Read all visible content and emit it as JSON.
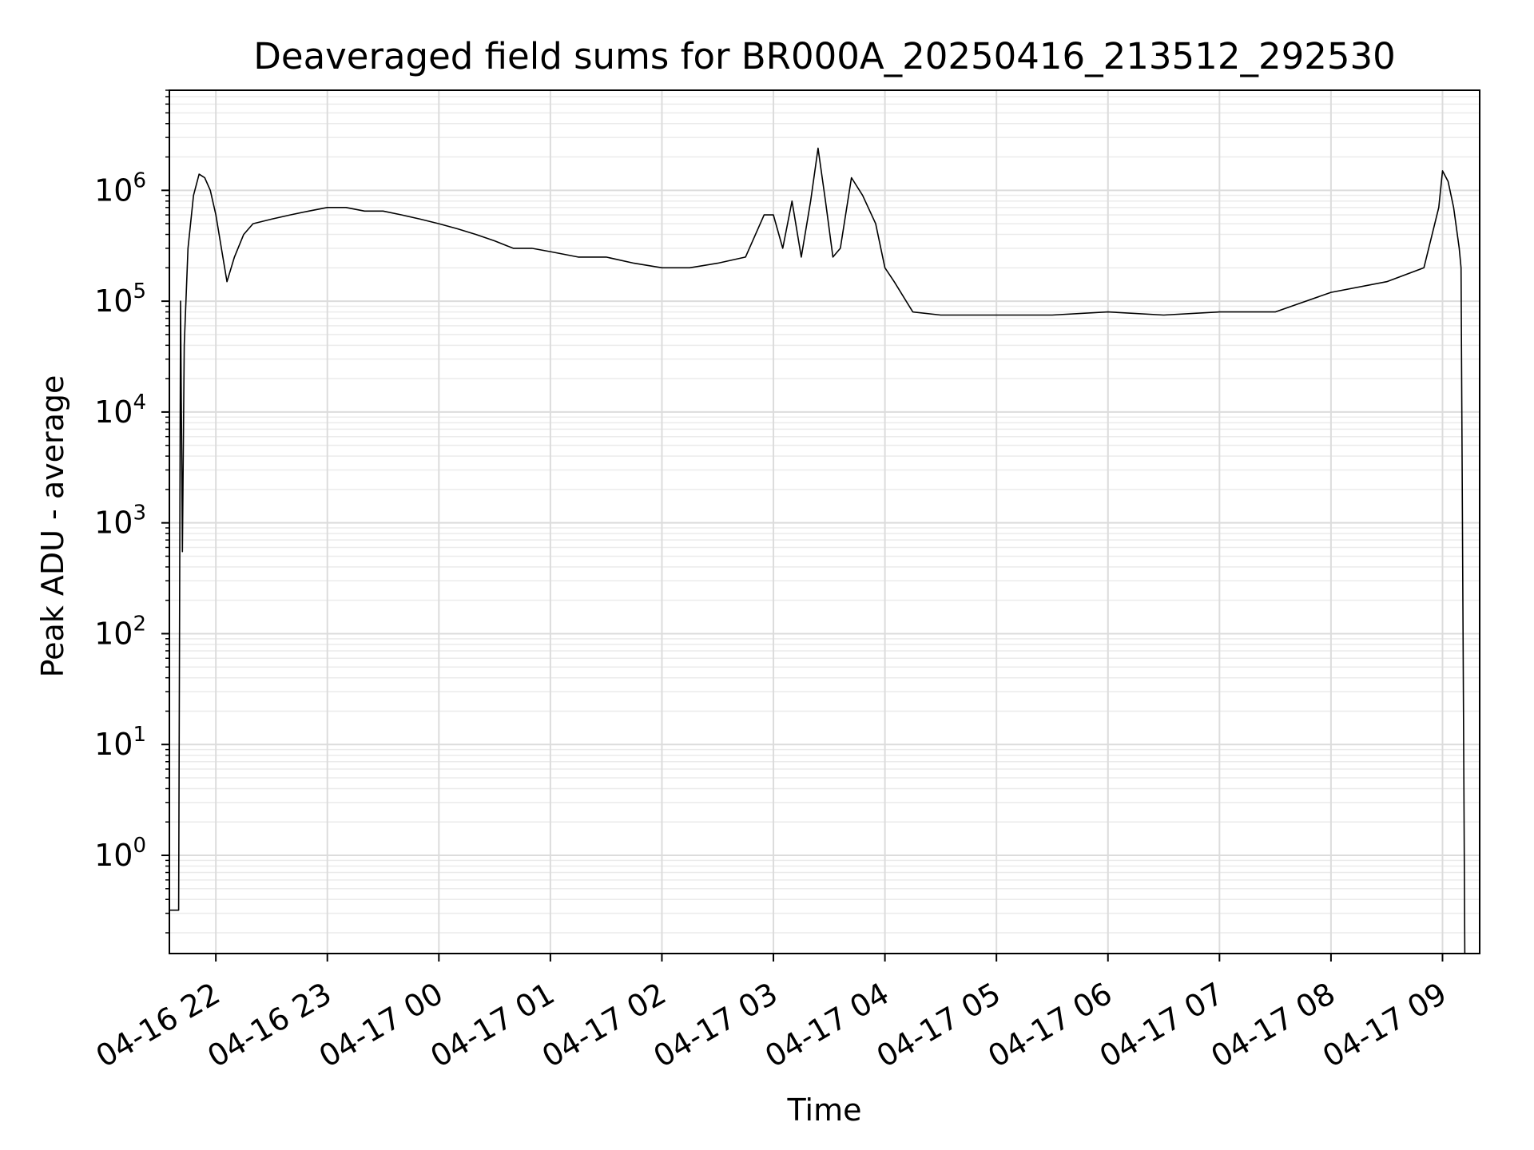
{
  "chart_data": {
    "type": "line",
    "title": "Deaveraged field sums for BR000A_20250416_213512_292530",
    "xlabel": "Time",
    "ylabel": "Peak ADU - average",
    "yscale": "log",
    "ylim": [
      0.13,
      8000000
    ],
    "xlim": [
      "2025-04-16 21:35",
      "2025-04-17 09:20"
    ],
    "grid": true,
    "line_color": "#000000",
    "x_ticks": [
      {
        "label": "04-16 22",
        "value": "2025-04-16 22:00"
      },
      {
        "label": "04-16 23",
        "value": "2025-04-16 23:00"
      },
      {
        "label": "04-17 00",
        "value": "2025-04-17 00:00"
      },
      {
        "label": "04-17 01",
        "value": "2025-04-17 01:00"
      },
      {
        "label": "04-17 02",
        "value": "2025-04-17 02:00"
      },
      {
        "label": "04-17 03",
        "value": "2025-04-17 03:00"
      },
      {
        "label": "04-17 04",
        "value": "2025-04-17 04:00"
      },
      {
        "label": "04-17 05",
        "value": "2025-04-17 05:00"
      },
      {
        "label": "04-17 06",
        "value": "2025-04-17 06:00"
      },
      {
        "label": "04-17 07",
        "value": "2025-04-17 07:00"
      },
      {
        "label": "04-17 08",
        "value": "2025-04-17 08:00"
      },
      {
        "label": "04-17 09",
        "value": "2025-04-17 09:00"
      }
    ],
    "y_ticks": [
      {
        "base": "10",
        "exp": "0",
        "value": 1
      },
      {
        "base": "10",
        "exp": "1",
        "value": 10
      },
      {
        "base": "10",
        "exp": "2",
        "value": 100
      },
      {
        "base": "10",
        "exp": "3",
        "value": 1000
      },
      {
        "base": "10",
        "exp": "4",
        "value": 10000
      },
      {
        "base": "10",
        "exp": "5",
        "value": 100000
      },
      {
        "base": "10",
        "exp": "6",
        "value": 1000000
      }
    ],
    "series": [
      {
        "points": [
          [
            "2025-04-16 21:35",
            0.32
          ],
          [
            "2025-04-16 21:40",
            0.32
          ],
          [
            "2025-04-16 21:41",
            100000
          ],
          [
            "2025-04-16 21:42",
            550
          ],
          [
            "2025-04-16 21:43",
            40000
          ],
          [
            "2025-04-16 21:45",
            300000
          ],
          [
            "2025-04-16 21:48",
            900000
          ],
          [
            "2025-04-16 21:51",
            1400000
          ],
          [
            "2025-04-16 21:54",
            1300000
          ],
          [
            "2025-04-16 21:57",
            1000000
          ],
          [
            "2025-04-16 22:00",
            600000
          ],
          [
            "2025-04-16 22:03",
            300000
          ],
          [
            "2025-04-16 22:06",
            150000
          ],
          [
            "2025-04-16 22:10",
            250000
          ],
          [
            "2025-04-16 22:15",
            400000
          ],
          [
            "2025-04-16 22:20",
            500000
          ],
          [
            "2025-04-16 22:30",
            550000
          ],
          [
            "2025-04-16 22:40",
            600000
          ],
          [
            "2025-04-16 22:50",
            650000
          ],
          [
            "2025-04-16 23:00",
            700000
          ],
          [
            "2025-04-16 23:10",
            700000
          ],
          [
            "2025-04-16 23:20",
            650000
          ],
          [
            "2025-04-16 23:30",
            650000
          ],
          [
            "2025-04-16 23:40",
            600000
          ],
          [
            "2025-04-16 23:50",
            550000
          ],
          [
            "2025-04-17 00:00",
            500000
          ],
          [
            "2025-04-17 00:10",
            450000
          ],
          [
            "2025-04-17 00:20",
            400000
          ],
          [
            "2025-04-17 00:30",
            350000
          ],
          [
            "2025-04-17 00:40",
            300000
          ],
          [
            "2025-04-17 00:50",
            300000
          ],
          [
            "2025-04-17 01:00",
            280000
          ],
          [
            "2025-04-17 01:15",
            250000
          ],
          [
            "2025-04-17 01:30",
            250000
          ],
          [
            "2025-04-17 01:45",
            220000
          ],
          [
            "2025-04-17 02:00",
            200000
          ],
          [
            "2025-04-17 02:15",
            200000
          ],
          [
            "2025-04-17 02:30",
            220000
          ],
          [
            "2025-04-17 02:45",
            250000
          ],
          [
            "2025-04-17 02:55",
            600000
          ],
          [
            "2025-04-17 03:00",
            600000
          ],
          [
            "2025-04-17 03:05",
            300000
          ],
          [
            "2025-04-17 03:10",
            800000
          ],
          [
            "2025-04-17 03:15",
            250000
          ],
          [
            "2025-04-17 03:20",
            800000
          ],
          [
            "2025-04-17 03:24",
            2400000
          ],
          [
            "2025-04-17 03:28",
            800000
          ],
          [
            "2025-04-17 03:32",
            250000
          ],
          [
            "2025-04-17 03:36",
            300000
          ],
          [
            "2025-04-17 03:42",
            1300000
          ],
          [
            "2025-04-17 03:48",
            900000
          ],
          [
            "2025-04-17 03:55",
            500000
          ],
          [
            "2025-04-17 04:00",
            200000
          ],
          [
            "2025-04-17 04:05",
            150000
          ],
          [
            "2025-04-17 04:15",
            80000
          ],
          [
            "2025-04-17 04:30",
            75000
          ],
          [
            "2025-04-17 05:00",
            75000
          ],
          [
            "2025-04-17 05:30",
            75000
          ],
          [
            "2025-04-17 06:00",
            80000
          ],
          [
            "2025-04-17 06:30",
            75000
          ],
          [
            "2025-04-17 07:00",
            80000
          ],
          [
            "2025-04-17 07:30",
            80000
          ],
          [
            "2025-04-17 08:00",
            120000
          ],
          [
            "2025-04-17 08:30",
            150000
          ],
          [
            "2025-04-17 08:50",
            200000
          ],
          [
            "2025-04-17 08:58",
            700000
          ],
          [
            "2025-04-17 09:00",
            1500000
          ],
          [
            "2025-04-17 09:03",
            1200000
          ],
          [
            "2025-04-17 09:06",
            700000
          ],
          [
            "2025-04-17 09:09",
            300000
          ],
          [
            "2025-04-17 09:10",
            200000
          ],
          [
            "2025-04-17 09:12",
            0.13
          ]
        ]
      }
    ]
  }
}
